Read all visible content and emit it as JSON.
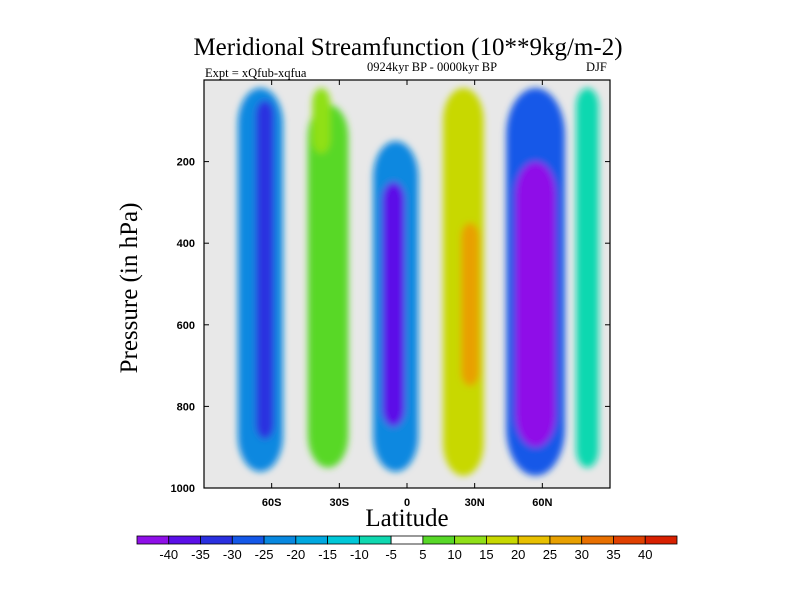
{
  "chart_data": {
    "type": "heatmap",
    "title": "Meridional Streamfunction (10**9kg/m-2)",
    "subtitle_left": "Expt = xQfub-xqfua",
    "subtitle_center": "0924kyr BP - 0000kyr BP",
    "subtitle_right": "DJF",
    "xlabel": "Latitude",
    "ylabel": "Pressure (in hPa)",
    "xlim": [
      -90,
      90
    ],
    "ylim": [
      1000,
      0
    ],
    "x_ticks": [
      {
        "value": -60,
        "label": "60S"
      },
      {
        "value": -30,
        "label": "30S"
      },
      {
        "value": 0,
        "label": "0"
      },
      {
        "value": 30,
        "label": "30N"
      },
      {
        "value": 60,
        "label": "60N"
      }
    ],
    "y_ticks": [
      {
        "value": 200,
        "label": "200"
      },
      {
        "value": 400,
        "label": "400"
      },
      {
        "value": 600,
        "label": "600"
      },
      {
        "value": 800,
        "label": "800"
      },
      {
        "value": 1000,
        "label": "1000"
      }
    ],
    "colorbar": {
      "labels": [
        "-40",
        "-35",
        "-30",
        "-25",
        "-20",
        "-15",
        "-10",
        "-5",
        "5",
        "10",
        "15",
        "20",
        "25",
        "30",
        "35",
        "40"
      ],
      "colors": [
        "#8f10e8",
        "#5b10e8",
        "#2a30e0",
        "#1458e8",
        "#0888e0",
        "#00a8e0",
        "#00c8d8",
        "#10d8b0",
        "#ffffff",
        "#58d828",
        "#90e018",
        "#c8d800",
        "#e8c000",
        "#e8a000",
        "#e87000",
        "#e04000",
        "#d82000"
      ]
    },
    "background_color": "#e8e8e8",
    "features": [
      {
        "name": "sh-polar-cell",
        "lat": -65,
        "lat_width": 10,
        "p_top": 20,
        "p_bottom": 960,
        "value": -22
      },
      {
        "name": "sh-polar-core",
        "lat": -63,
        "lat_width": 4,
        "p_top": 50,
        "p_bottom": 880,
        "value": -32
      },
      {
        "name": "sh-midlat-positive",
        "lat": -35,
        "lat_width": 9,
        "p_top": 60,
        "p_bottom": 950,
        "value": 9
      },
      {
        "name": "sh-midlat-upper-tongue",
        "lat": -38,
        "lat_width": 4,
        "p_top": 20,
        "p_bottom": 180,
        "value": 13
      },
      {
        "name": "tropical-negative-cell",
        "lat": -5,
        "lat_width": 10,
        "p_top": 150,
        "p_bottom": 960,
        "value": -24
      },
      {
        "name": "tropical-negative-core",
        "lat": -6,
        "lat_width": 5,
        "p_top": 250,
        "p_bottom": 850,
        "value": -38
      },
      {
        "name": "nh-subtropical-positive",
        "lat": 25,
        "lat_width": 9,
        "p_top": 20,
        "p_bottom": 970,
        "value": 16
      },
      {
        "name": "nh-subtropical-core",
        "lat": 28,
        "lat_width": 4,
        "p_top": 350,
        "p_bottom": 750,
        "value": 28
      },
      {
        "name": "nh-midlat-negative-cell",
        "lat": 57,
        "lat_width": 13,
        "p_top": 20,
        "p_bottom": 970,
        "value": -25
      },
      {
        "name": "nh-midlat-negative-core",
        "lat": 57,
        "lat_width": 9,
        "p_top": 200,
        "p_bottom": 900,
        "value": -40
      },
      {
        "name": "nh-polar-fringe",
        "lat": 80,
        "lat_width": 5,
        "p_top": 20,
        "p_bottom": 950,
        "value": -8
      }
    ]
  }
}
